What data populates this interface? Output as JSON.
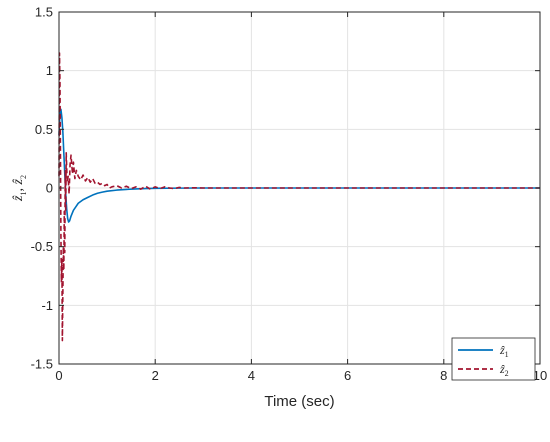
{
  "chart_data": {
    "type": "line",
    "xlabel": "Time (sec)",
    "ylabel": "ẑ₁, ẑ₂",
    "ylabel_parts": [
      {
        "base": "ẑ",
        "sub": "1"
      },
      {
        "base": ", ẑ",
        "sub": "2"
      }
    ],
    "xlim": [
      0,
      10
    ],
    "ylim": [
      -1.5,
      1.5
    ],
    "xticks": [
      0,
      2,
      4,
      6,
      8,
      10
    ],
    "yticks": [
      -1.5,
      -1,
      -0.5,
      0,
      0.5,
      1,
      1.5
    ],
    "xtick_labels": [
      "0",
      "2",
      "4",
      "6",
      "8",
      "10"
    ],
    "ytick_labels": [
      "-1.5",
      "-1",
      "-0.5",
      "0",
      "0.5",
      "1",
      "1.5"
    ],
    "grid": true,
    "legend_position": "bottom-right",
    "series": [
      {
        "name": "ẑ₁",
        "name_base": "ẑ",
        "name_sub": "1",
        "color": "#0072BD",
        "style": "solid",
        "x": [
          0,
          0.02,
          0.04,
          0.06,
          0.08,
          0.1,
          0.12,
          0.14,
          0.16,
          0.18,
          0.2,
          0.22,
          0.25,
          0.3,
          0.35,
          0.4,
          0.5,
          0.6,
          0.7,
          0.8,
          0.9,
          1.0,
          1.2,
          1.4,
          1.6,
          1.8,
          2.0,
          2.5,
          3.0,
          4.0,
          6.0,
          8.0,
          10.0
        ],
        "y": [
          0.45,
          0.65,
          0.67,
          0.6,
          0.48,
          0.3,
          0.12,
          -0.05,
          -0.18,
          -0.26,
          -0.29,
          -0.28,
          -0.24,
          -0.19,
          -0.16,
          -0.13,
          -0.1,
          -0.08,
          -0.06,
          -0.045,
          -0.035,
          -0.027,
          -0.018,
          -0.012,
          -0.008,
          -0.005,
          -0.003,
          -0.001,
          0,
          0,
          0,
          0,
          0
        ]
      },
      {
        "name": "ẑ₂",
        "name_base": "ẑ",
        "name_sub": "2",
        "color": "#A2142F",
        "style": "dashed",
        "x": [
          0,
          0.01,
          0.02,
          0.03,
          0.04,
          0.05,
          0.06,
          0.07,
          0.08,
          0.09,
          0.1,
          0.11,
          0.12,
          0.13,
          0.14,
          0.15,
          0.17,
          0.19,
          0.21,
          0.23,
          0.25,
          0.28,
          0.3,
          0.33,
          0.36,
          0.4,
          0.45,
          0.5,
          0.55,
          0.6,
          0.65,
          0.7,
          0.75,
          0.8,
          0.85,
          0.9,
          0.95,
          1.0,
          1.05,
          1.1,
          1.2,
          1.3,
          1.4,
          1.5,
          1.6,
          1.7,
          1.8,
          1.9,
          2.0,
          2.1,
          2.2,
          2.3,
          2.4,
          2.5,
          2.6,
          2.8,
          3.0,
          3.5,
          4.0,
          6.0,
          8.0,
          10.0
        ],
        "y": [
          0.1,
          1.15,
          0.9,
          0.3,
          -0.4,
          -0.8,
          -0.6,
          -1.3,
          -0.9,
          -0.5,
          -0.7,
          -0.2,
          -0.55,
          0.15,
          -0.2,
          0.3,
          0.05,
          0.1,
          -0.05,
          0.2,
          0.28,
          0.12,
          0.22,
          0.08,
          0.15,
          0.1,
          0.07,
          0.11,
          0.06,
          0.09,
          0.05,
          0.08,
          0.04,
          0.05,
          0.03,
          0.04,
          0.02,
          0.03,
          0.0,
          0.01,
          0.02,
          0.0,
          0.015,
          -0.005,
          0.01,
          -0.01,
          0.015,
          -0.01,
          0.01,
          -0.005,
          0.01,
          0.0,
          -0.005,
          0.005,
          0.0,
          0.002,
          0,
          0,
          0,
          0,
          0,
          0
        ]
      }
    ]
  }
}
